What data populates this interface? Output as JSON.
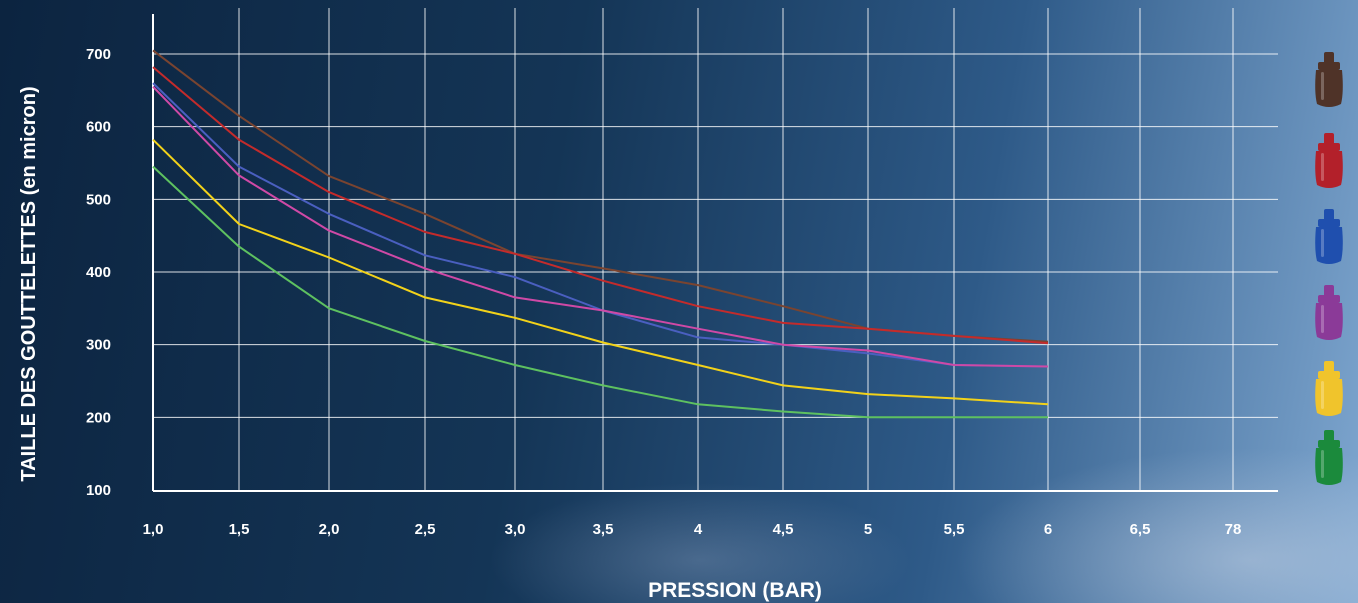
{
  "chart_data": {
    "type": "line",
    "xlabel": "PRESSION (BAR)",
    "ylabel": "TAILLE DES GOUTTELETTES (en micron)",
    "x_tick_labels": [
      "1,0",
      "1,5",
      "2,0",
      "2,5",
      "3,0",
      "3,5",
      "4",
      "4,5",
      "5",
      "5,5",
      "6",
      "6,5",
      "78"
    ],
    "x": [
      1.0,
      1.5,
      2.0,
      2.5,
      3.0,
      3.5,
      4.0,
      4.5,
      5.0,
      5.5,
      6.0
    ],
    "y_ticks": [
      100,
      200,
      300,
      400,
      500,
      600,
      700
    ],
    "ylim": [
      100,
      730
    ],
    "grid": true,
    "legend": "nozzle-icons-right",
    "series": [
      {
        "color": "#7a4430",
        "values": [
          705,
          615,
          532,
          480,
          425,
          405,
          382,
          353,
          322,
          312,
          304
        ]
      },
      {
        "color": "#c42b2b",
        "values": [
          682,
          582,
          510,
          455,
          425,
          388,
          353,
          330,
          322,
          312,
          302
        ]
      },
      {
        "color": "#4a5fc0",
        "values": [
          660,
          545,
          480,
          423,
          393,
          347,
          310,
          300,
          288,
          272,
          270
        ]
      },
      {
        "color": "#cf49a6",
        "values": [
          655,
          533,
          457,
          405,
          365,
          347,
          322,
          300,
          292,
          272,
          270
        ]
      },
      {
        "color": "#f2d21a",
        "values": [
          582,
          466,
          420,
          365,
          337,
          303,
          272,
          244,
          232,
          226,
          218
        ]
      },
      {
        "color": "#5ec160",
        "values": [
          545,
          435,
          350,
          305,
          272,
          244,
          218,
          208,
          200,
          200,
          200
        ]
      }
    ]
  },
  "legend_icons": [
    {
      "name": "brown-nozzle-icon",
      "color": "#4f3328"
    },
    {
      "name": "red-nozzle-icon",
      "color": "#b3202a"
    },
    {
      "name": "blue-nozzle-icon",
      "color": "#1f4fae"
    },
    {
      "name": "purple-nozzle-icon",
      "color": "#8b3a98"
    },
    {
      "name": "yellow-nozzle-icon",
      "color": "#f0c42c"
    },
    {
      "name": "green-nozzle-icon",
      "color": "#1b8a3c"
    }
  ]
}
